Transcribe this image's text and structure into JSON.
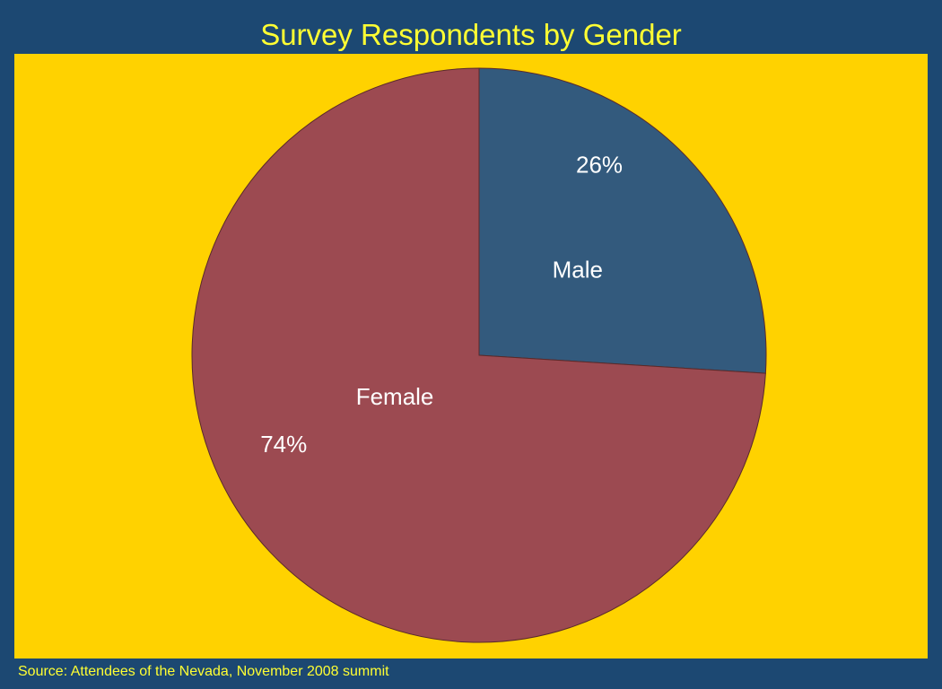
{
  "chart_data": {
    "type": "pie",
    "title": "Survey Respondents by Gender",
    "start_angle_deg": 0,
    "direction": "clockwise",
    "slices": [
      {
        "label": "Male",
        "value": 26,
        "value_label": "26%",
        "color": "#335a7d"
      },
      {
        "label": "Female",
        "value": 74,
        "value_label": "74%",
        "color": "#9c4a51"
      }
    ],
    "colors": {
      "background": "#ffd200",
      "frame": "#1c4872",
      "title_text": "#ffff33",
      "slice_label_text": "#ffffff",
      "slice_border": "#5a2a2a"
    }
  },
  "footer": {
    "source": "Source: Attendees of the Nevada, November 2008 summit"
  }
}
